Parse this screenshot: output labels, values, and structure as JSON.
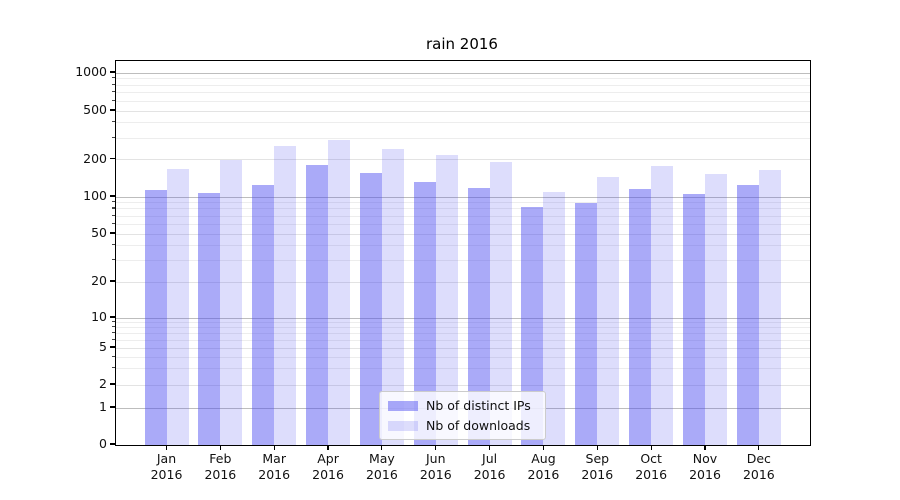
{
  "title": "rain 2016",
  "chart_data": {
    "type": "bar",
    "title": "rain 2016",
    "yscale": "symlog",
    "grid": true,
    "ylim": [
      0,
      1000
    ],
    "yticks": [
      0,
      1,
      2,
      5,
      10,
      20,
      50,
      100,
      200,
      500,
      1000
    ],
    "categories": [
      "Jan",
      "Feb",
      "Mar",
      "Apr",
      "May",
      "Jun",
      "Jul",
      "Aug",
      "Sep",
      "Oct",
      "Nov",
      "Dec"
    ],
    "x_year": "2016",
    "series": [
      {
        "name": "Nb of distinct IPs",
        "color": "rgba(75,75,240,0.47)",
        "values": [
          114,
          108,
          126,
          180,
          157,
          133,
          119,
          83,
          90,
          117,
          106,
          124
        ]
      },
      {
        "name": "Nb of downloads",
        "color": "rgba(75,75,240,0.19)",
        "values": [
          168,
          197,
          258,
          287,
          243,
          216,
          191,
          109,
          145,
          177,
          154,
          164
        ]
      }
    ],
    "legend_position": "lower center",
    "colors": {
      "major_gridline": "#bdbdbd",
      "tick_gridline": "#e3e3e3",
      "minor_gridline": "#ededed",
      "spine": "#000000"
    }
  }
}
